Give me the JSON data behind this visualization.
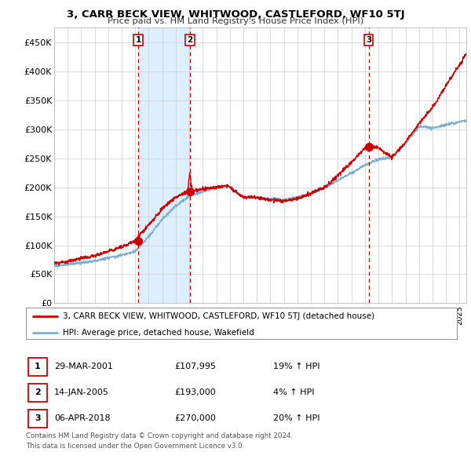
{
  "title": "3, CARR BECK VIEW, WHITWOOD, CASTLEFORD, WF10 5TJ",
  "subtitle": "Price paid vs. HM Land Registry's House Price Index (HPI)",
  "ylim": [
    0,
    475000
  ],
  "yticks": [
    0,
    50000,
    100000,
    150000,
    200000,
    250000,
    300000,
    350000,
    400000,
    450000
  ],
  "ytick_labels": [
    "£0",
    "£50K",
    "£100K",
    "£150K",
    "£200K",
    "£250K",
    "£300K",
    "£350K",
    "£400K",
    "£450K"
  ],
  "xlim_start": 1995.0,
  "xlim_end": 2025.5,
  "sale_dates": [
    2001.24,
    2005.04,
    2018.27
  ],
  "sale_prices": [
    107995,
    193000,
    270000
  ],
  "sale_labels": [
    "1",
    "2",
    "3"
  ],
  "hpi_line_color": "#7bafd4",
  "price_line_color": "#cc0000",
  "sale_vline_color": "#cc0000",
  "shade_color": "#ddeeff",
  "legend_label_price": "3, CARR BECK VIEW, WHITWOOD, CASTLEFORD, WF10 5TJ (detached house)",
  "legend_label_hpi": "HPI: Average price, detached house, Wakefield",
  "table_rows": [
    [
      "1",
      "29-MAR-2001",
      "£107,995",
      "19% ↑ HPI"
    ],
    [
      "2",
      "14-JAN-2005",
      "£193,000",
      "4% ↑ HPI"
    ],
    [
      "3",
      "06-APR-2018",
      "£270,000",
      "20% ↑ HPI"
    ]
  ],
  "footnote1": "Contains HM Land Registry data © Crown copyright and database right 2024.",
  "footnote2": "This data is licensed under the Open Government Licence v3.0.",
  "background_color": "#ffffff",
  "plot_bg_color": "#ffffff",
  "grid_color": "#cccccc"
}
